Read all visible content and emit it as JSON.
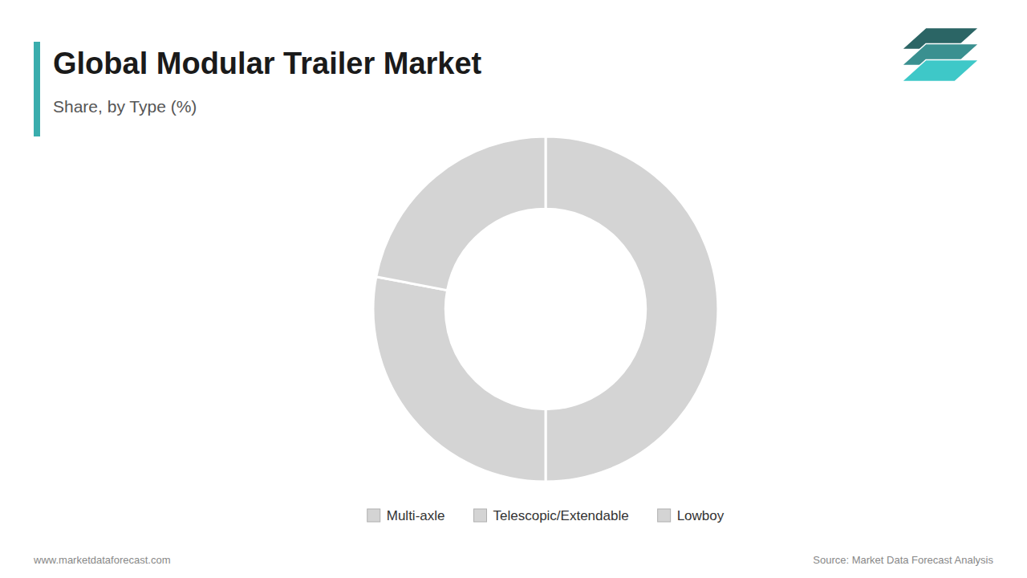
{
  "chart_data": {
    "type": "pie",
    "title": "Global Modular Trailer Market",
    "subtitle": "Share, by Type (%)",
    "categories": [
      "Multi-axle",
      "Telescopic/Extendable",
      "Lowboy"
    ],
    "values": [
      50,
      28,
      22
    ],
    "colors": [
      "#d4d4d4",
      "#d4d4d4",
      "#d4d4d4"
    ],
    "legend": "bottom",
    "annotations": [
      "www.marketdataforecast.com",
      "Source: Market Data Forecast Analysis"
    ]
  }
}
